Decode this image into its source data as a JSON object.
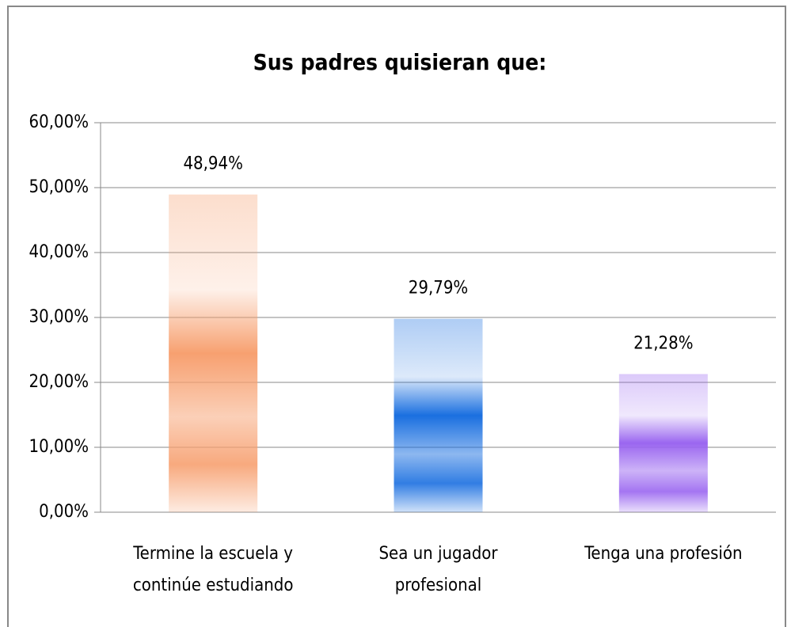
{
  "chart_data": {
    "type": "bar",
    "title": "Sus padres quisieran que:",
    "categories": [
      "Termine la escuela y continúe estudiando",
      "Sea un jugador profesional",
      "Tenga una profesión"
    ],
    "values": [
      48.94,
      29.79,
      21.28
    ],
    "value_labels": [
      "48,94%",
      "29,79%",
      "21,28%"
    ],
    "colors": [
      "#f7a070",
      "#1a6fe0",
      "#9a66f0"
    ],
    "ylim": [
      0,
      60
    ],
    "yticks": [
      {
        "value": 0,
        "label": "0,00%"
      },
      {
        "value": 10,
        "label": "10,00%"
      },
      {
        "value": 20,
        "label": "20,00%"
      },
      {
        "value": 30,
        "label": "30,00%"
      },
      {
        "value": 40,
        "label": "40,00%"
      },
      {
        "value": 50,
        "label": "50,00%"
      },
      {
        "value": 60,
        "label": "60,00%"
      }
    ],
    "grid": true
  }
}
